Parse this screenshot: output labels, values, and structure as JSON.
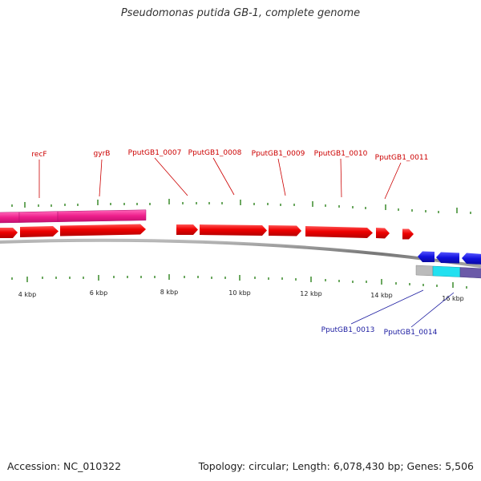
{
  "title": "Pseudomonas putida GB-1, complete genome",
  "accession": "Accession: NC_010322",
  "summary": "Topology: circular; Length: 6,078,430 bp; Genes: 5,506",
  "colors": {
    "forward_cds": "#ee0000",
    "forward_gene": "#ee1f8c",
    "reverse_cds": "#1111dd",
    "reverse_gene_a": "#bbbbbb",
    "reverse_gene_b": "#22e0f0",
    "reverse_gene_c": "#6b5aa8",
    "tick": "#3a8a2a",
    "backbone": "#888888",
    "forward_label": "#cc0000",
    "reverse_label": "#1a1aa0"
  },
  "scale_labels": [
    "4 kbp",
    "6 kbp",
    "8 kbp",
    "10 kbp",
    "12 kbp",
    "14 kbp",
    "16 kbp"
  ],
  "forward_labels": [
    "recF",
    "gyrB",
    "PputGB1_0007",
    "PputGB1_0008",
    "PputGB1_0009",
    "PputGB1_0010",
    "PputGB1_0011"
  ],
  "reverse_labels": [
    "PputGB1_0013",
    "PputGB1_0014"
  ]
}
